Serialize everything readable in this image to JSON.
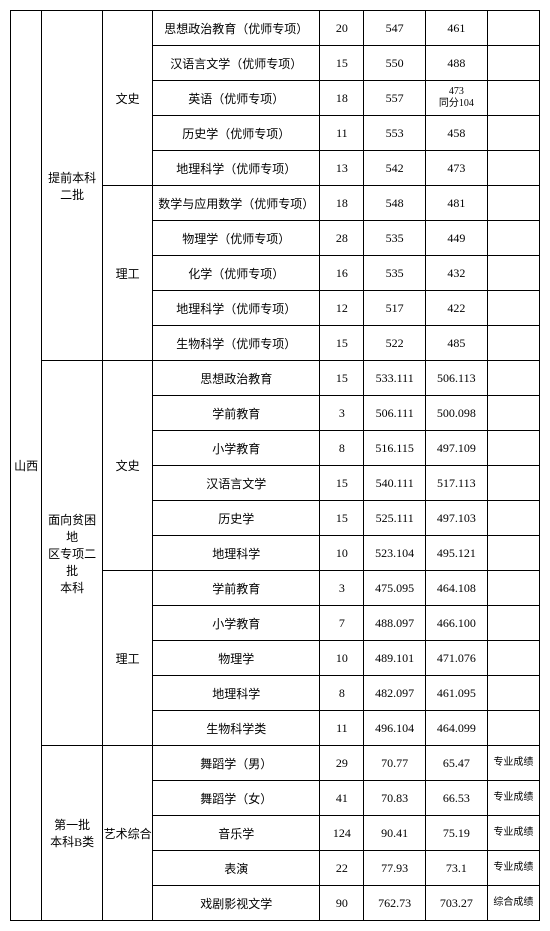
{
  "region": "山西",
  "batches": [
    {
      "name": "提前本科\n二批",
      "groups": [
        {
          "category": "文史",
          "rows": [
            {
              "major": "思想政治教育（优师专项）",
              "n": "20",
              "v1": "547",
              "v2": "461",
              "note": ""
            },
            {
              "major": "汉语言文学（优师专项）",
              "n": "15",
              "v1": "550",
              "v2": "488",
              "note": ""
            },
            {
              "major": "英语（优师专项）",
              "n": "18",
              "v1": "557",
              "v2": "473\n同分104",
              "note": ""
            },
            {
              "major": "历史学（优师专项）",
              "n": "11",
              "v1": "553",
              "v2": "458",
              "note": ""
            },
            {
              "major": "地理科学（优师专项）",
              "n": "13",
              "v1": "542",
              "v2": "473",
              "note": ""
            }
          ]
        },
        {
          "category": "理工",
          "rows": [
            {
              "major": "数学与应用数学（优师专项）",
              "n": "18",
              "v1": "548",
              "v2": "481",
              "note": ""
            },
            {
              "major": "物理学（优师专项）",
              "n": "28",
              "v1": "535",
              "v2": "449",
              "note": ""
            },
            {
              "major": "化学（优师专项）",
              "n": "16",
              "v1": "535",
              "v2": "432",
              "note": ""
            },
            {
              "major": "地理科学（优师专项）",
              "n": "12",
              "v1": "517",
              "v2": "422",
              "note": ""
            },
            {
              "major": "生物科学（优师专项）",
              "n": "15",
              "v1": "522",
              "v2": "485",
              "note": ""
            }
          ]
        }
      ]
    },
    {
      "name": "面向贫困地\n区专项二批\n本科",
      "groups": [
        {
          "category": "文史",
          "rows": [
            {
              "major": "思想政治教育",
              "n": "15",
              "v1": "533.111",
              "v2": "506.113",
              "note": ""
            },
            {
              "major": "学前教育",
              "n": "3",
              "v1": "506.111",
              "v2": "500.098",
              "note": ""
            },
            {
              "major": "小学教育",
              "n": "8",
              "v1": "516.115",
              "v2": "497.109",
              "note": ""
            },
            {
              "major": "汉语言文学",
              "n": "15",
              "v1": "540.111",
              "v2": "517.113",
              "note": ""
            },
            {
              "major": "历史学",
              "n": "15",
              "v1": "525.111",
              "v2": "497.103",
              "note": ""
            },
            {
              "major": "地理科学",
              "n": "10",
              "v1": "523.104",
              "v2": "495.121",
              "note": ""
            }
          ]
        },
        {
          "category": "理工",
          "rows": [
            {
              "major": "学前教育",
              "n": "3",
              "v1": "475.095",
              "v2": "464.108",
              "note": ""
            },
            {
              "major": "小学教育",
              "n": "7",
              "v1": "488.097",
              "v2": "466.100",
              "note": ""
            },
            {
              "major": "物理学",
              "n": "10",
              "v1": "489.101",
              "v2": "471.076",
              "note": ""
            },
            {
              "major": "地理科学",
              "n": "8",
              "v1": "482.097",
              "v2": "461.095",
              "note": ""
            },
            {
              "major": "生物科学类",
              "n": "11",
              "v1": "496.104",
              "v2": "464.099",
              "note": ""
            }
          ]
        }
      ]
    },
    {
      "name": "第一批\n本科B类",
      "groups": [
        {
          "category": "艺术综合",
          "rows": [
            {
              "major": "舞蹈学（男）",
              "n": "29",
              "v1": "70.77",
              "v2": "65.47",
              "note": "专业成绩"
            },
            {
              "major": "舞蹈学（女）",
              "n": "41",
              "v1": "70.83",
              "v2": "66.53",
              "note": "专业成绩"
            },
            {
              "major": "音乐学",
              "n": "124",
              "v1": "90.41",
              "v2": "75.19",
              "note": "专业成绩"
            },
            {
              "major": "表演",
              "n": "22",
              "v1": "77.93",
              "v2": "73.1",
              "note": "专业成绩"
            },
            {
              "major": "戏剧影视文学",
              "n": "90",
              "v1": "762.73",
              "v2": "703.27",
              "note": "综合成绩"
            }
          ]
        }
      ]
    }
  ]
}
